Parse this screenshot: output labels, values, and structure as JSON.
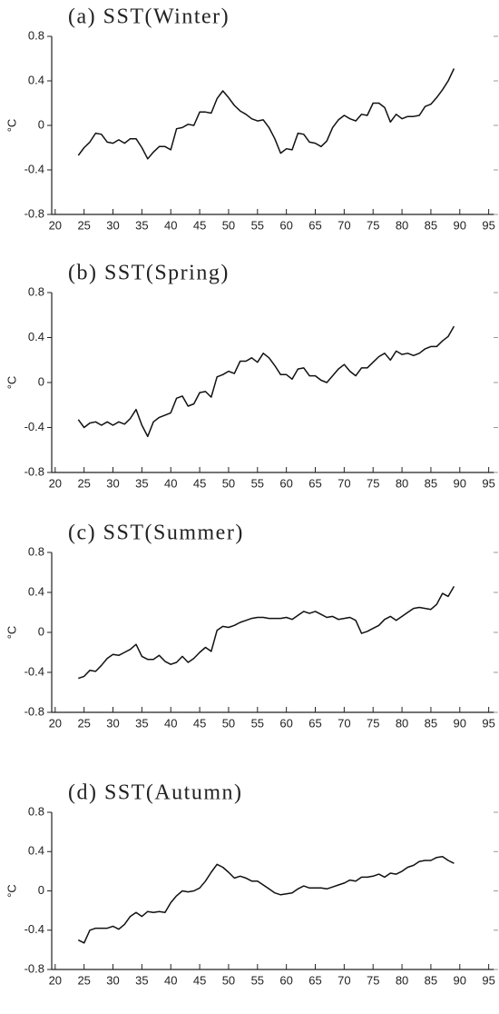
{
  "chart_data": [
    {
      "type": "line",
      "title": "(a) SST(Winter)",
      "ylabel": "°C",
      "color": "#111111",
      "x": [
        24,
        25,
        26,
        27,
        28,
        29,
        30,
        31,
        32,
        33,
        34,
        35,
        36,
        37,
        38,
        39,
        40,
        41,
        42,
        43,
        44,
        45,
        46,
        47,
        48,
        49,
        50,
        51,
        52,
        53,
        54,
        55,
        56,
        57,
        58,
        59,
        60,
        61,
        62,
        63,
        64,
        65,
        66,
        67,
        68,
        69,
        70,
        71,
        72,
        73,
        74,
        75,
        76,
        77,
        78,
        79,
        80,
        81,
        82,
        83,
        84,
        85,
        86,
        87,
        88,
        89
      ],
      "values": [
        -0.27,
        -0.2,
        -0.15,
        -0.07,
        -0.08,
        -0.15,
        -0.16,
        -0.13,
        -0.16,
        -0.12,
        -0.12,
        -0.2,
        -0.3,
        -0.24,
        -0.19,
        -0.19,
        -0.22,
        -0.03,
        -0.02,
        0.01,
        0,
        0.12,
        0.12,
        0.11,
        0.24,
        0.31,
        0.25,
        0.18,
        0.13,
        0.1,
        0.06,
        0.04,
        0.05,
        -0.02,
        -0.12,
        -0.25,
        -0.21,
        -0.22,
        -0.07,
        -0.08,
        -0.15,
        -0.16,
        -0.19,
        -0.14,
        -0.02,
        0.05,
        0.09,
        0.06,
        0.04,
        0.1,
        0.09,
        0.2,
        0.2,
        0.16,
        0.03,
        0.1,
        0.06,
        0.08,
        0.08,
        0.09,
        0.17,
        0.19,
        0.25,
        0.32,
        0.4,
        0.51
      ],
      "xlim": [
        19.4,
        96
      ],
      "xticks": [
        20,
        25,
        30,
        35,
        40,
        45,
        50,
        55,
        60,
        65,
        70,
        75,
        80,
        85,
        90,
        95
      ],
      "ylim": [
        -0.8,
        0.8
      ],
      "yticks": [
        -0.8,
        -0.4,
        0,
        0.4,
        0.8
      ]
    },
    {
      "type": "line",
      "title": "(b) SST(Spring)",
      "ylabel": "°C",
      "color": "#111111",
      "x": [
        24,
        25,
        26,
        27,
        28,
        29,
        30,
        31,
        32,
        33,
        34,
        35,
        36,
        37,
        38,
        39,
        40,
        41,
        42,
        43,
        44,
        45,
        46,
        47,
        48,
        49,
        50,
        51,
        52,
        53,
        54,
        55,
        56,
        57,
        58,
        59,
        60,
        61,
        62,
        63,
        64,
        65,
        66,
        67,
        68,
        69,
        70,
        71,
        72,
        73,
        74,
        75,
        76,
        77,
        78,
        79,
        80,
        81,
        82,
        83,
        84,
        85,
        86,
        87,
        88,
        89
      ],
      "values": [
        -0.33,
        -0.4,
        -0.36,
        -0.35,
        -0.38,
        -0.35,
        -0.38,
        -0.35,
        -0.37,
        -0.32,
        -0.24,
        -0.38,
        -0.48,
        -0.35,
        -0.31,
        -0.29,
        -0.27,
        -0.14,
        -0.12,
        -0.21,
        -0.19,
        -0.09,
        -0.08,
        -0.13,
        0.05,
        0.07,
        0.1,
        0.08,
        0.19,
        0.19,
        0.22,
        0.18,
        0.26,
        0.22,
        0.15,
        0.07,
        0.07,
        0.03,
        0.12,
        0.13,
        0.06,
        0.06,
        0.02,
        0,
        0.06,
        0.12,
        0.16,
        0.1,
        0.06,
        0.13,
        0.13,
        0.18,
        0.23,
        0.26,
        0.2,
        0.28,
        0.25,
        0.26,
        0.24,
        0.26,
        0.3,
        0.32,
        0.32,
        0.37,
        0.41,
        0.5
      ],
      "xlim": [
        19.4,
        96
      ],
      "xticks": [
        20,
        25,
        30,
        35,
        40,
        45,
        50,
        55,
        60,
        65,
        70,
        75,
        80,
        85,
        90,
        95
      ],
      "ylim": [
        -0.8,
        0.8
      ],
      "yticks": [
        -0.8,
        -0.4,
        0,
        0.4,
        0.8
      ]
    },
    {
      "type": "line",
      "title": "(c) SST(Summer)",
      "ylabel": "°C",
      "color": "#111111",
      "x": [
        24,
        25,
        26,
        27,
        28,
        29,
        30,
        31,
        32,
        33,
        34,
        35,
        36,
        37,
        38,
        39,
        40,
        41,
        42,
        43,
        44,
        45,
        46,
        47,
        48,
        49,
        50,
        51,
        52,
        53,
        54,
        55,
        56,
        57,
        58,
        59,
        60,
        61,
        62,
        63,
        64,
        65,
        66,
        67,
        68,
        69,
        70,
        71,
        72,
        73,
        74,
        75,
        76,
        77,
        78,
        79,
        80,
        81,
        82,
        83,
        84,
        85,
        86,
        87,
        88,
        89
      ],
      "values": [
        -0.46,
        -0.44,
        -0.38,
        -0.39,
        -0.33,
        -0.26,
        -0.22,
        -0.23,
        -0.2,
        -0.17,
        -0.12,
        -0.24,
        -0.27,
        -0.27,
        -0.23,
        -0.29,
        -0.32,
        -0.3,
        -0.24,
        -0.3,
        -0.26,
        -0.2,
        -0.15,
        -0.19,
        0.02,
        0.06,
        0.05,
        0.07,
        0.1,
        0.12,
        0.14,
        0.15,
        0.15,
        0.14,
        0.14,
        0.14,
        0.15,
        0.13,
        0.17,
        0.21,
        0.19,
        0.21,
        0.18,
        0.15,
        0.16,
        0.13,
        0.14,
        0.15,
        0.12,
        -0.01,
        0.01,
        0.04,
        0.07,
        0.13,
        0.16,
        0.12,
        0.16,
        0.2,
        0.24,
        0.25,
        0.24,
        0.23,
        0.28,
        0.39,
        0.36,
        0.46
      ],
      "xlim": [
        19.4,
        96
      ],
      "xticks": [
        20,
        25,
        30,
        35,
        40,
        45,
        50,
        55,
        60,
        65,
        70,
        75,
        80,
        85,
        90,
        95
      ],
      "ylim": [
        -0.8,
        0.8
      ],
      "yticks": [
        -0.8,
        -0.4,
        0,
        0.4,
        0.8
      ]
    },
    {
      "type": "line",
      "title": "(d) SST(Autumn)",
      "ylabel": "°C",
      "color": "#111111",
      "x": [
        24,
        25,
        26,
        27,
        28,
        29,
        30,
        31,
        32,
        33,
        34,
        35,
        36,
        37,
        38,
        39,
        40,
        41,
        42,
        43,
        44,
        45,
        46,
        47,
        48,
        49,
        50,
        51,
        52,
        53,
        54,
        55,
        56,
        57,
        58,
        59,
        60,
        61,
        62,
        63,
        64,
        65,
        66,
        67,
        68,
        69,
        70,
        71,
        72,
        73,
        74,
        75,
        76,
        77,
        78,
        79,
        80,
        81,
        82,
        83,
        84,
        85,
        86,
        87,
        88,
        89
      ],
      "values": [
        -0.5,
        -0.53,
        -0.4,
        -0.38,
        -0.38,
        -0.38,
        -0.36,
        -0.39,
        -0.34,
        -0.26,
        -0.22,
        -0.26,
        -0.21,
        -0.22,
        -0.21,
        -0.22,
        -0.12,
        -0.05,
        0,
        -0.01,
        0,
        0.03,
        0.1,
        0.19,
        0.27,
        0.24,
        0.19,
        0.13,
        0.15,
        0.13,
        0.1,
        0.1,
        0.06,
        0.02,
        -0.02,
        -0.04,
        -0.03,
        -0.02,
        0.02,
        0.05,
        0.03,
        0.03,
        0.03,
        0.02,
        0.04,
        0.06,
        0.08,
        0.11,
        0.1,
        0.14,
        0.14,
        0.15,
        0.17,
        0.14,
        0.18,
        0.17,
        0.2,
        0.24,
        0.26,
        0.3,
        0.31,
        0.31,
        0.34,
        0.35,
        0.31,
        0.28
      ],
      "xlim": [
        19.4,
        96
      ],
      "xticks": [
        20,
        25,
        30,
        35,
        40,
        45,
        50,
        55,
        60,
        65,
        70,
        75,
        80,
        85,
        90,
        95
      ],
      "ylim": [
        -0.8,
        0.8
      ],
      "yticks": [
        -0.8,
        -0.4,
        0,
        0.4,
        0.8
      ]
    }
  ]
}
